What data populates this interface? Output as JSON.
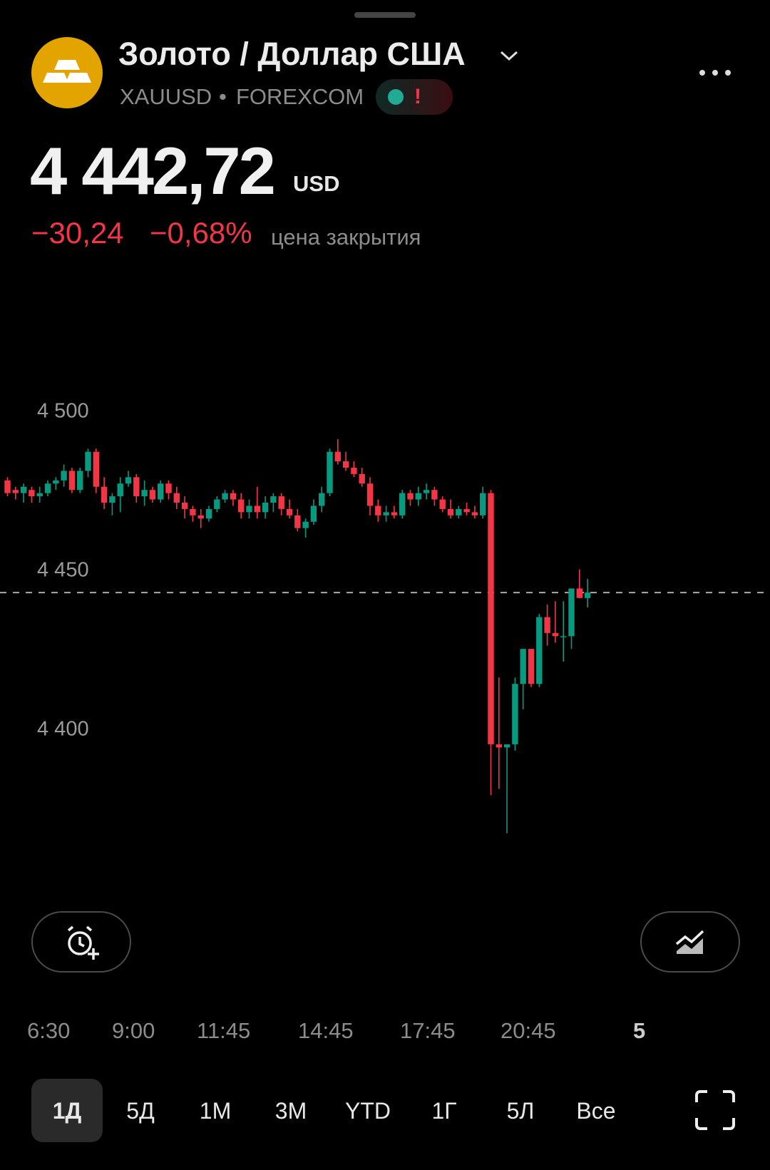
{
  "header": {
    "title": "Золото / Доллар США",
    "symbol": "XAUUSD",
    "exchange": "FOREXCOM",
    "price": "4 442,72",
    "currency": "USD",
    "change": "−30,24",
    "change_percent": "−0,68%",
    "status": "цена закрытия"
  },
  "ranges": [
    "1Д",
    "5Д",
    "1М",
    "3М",
    "YTD",
    "1Г",
    "5Л",
    "Все"
  ],
  "chart_data": {
    "type": "candlestick",
    "up_color": "#089981",
    "down_color": "#f23645",
    "ylim": [
      4360,
      4508
    ],
    "yticks": [
      {
        "value": 4400,
        "label": "4 400"
      },
      {
        "value": 4450,
        "label": "4 450"
      },
      {
        "value": 4500,
        "label": "4 500"
      }
    ],
    "x_labels": [
      "6:30",
      "9:00",
      "11:45",
      "14:45",
      "17:45",
      "20:45",
      "5"
    ],
    "open": [
      4478,
      4475,
      4474,
      4475,
      4473,
      4474,
      4477,
      4478,
      4481,
      4475,
      4481,
      4487,
      4476,
      4471,
      4473,
      4477,
      4479,
      4473,
      4475,
      4472,
      4477,
      4474,
      4471,
      4469,
      4467,
      4466,
      4469,
      4472,
      4474,
      4472,
      4468,
      4470,
      4468,
      4471,
      4473,
      4469,
      4467,
      4463,
      4465,
      4470,
      4474,
      4487,
      4484,
      4482,
      4480,
      4477,
      4470,
      4467,
      4468,
      4467,
      4474,
      4472,
      4474,
      4475,
      4472,
      4469,
      4467,
      4469,
      4468,
      4467,
      4474,
      4395,
      4394,
      4395,
      4414,
      4425,
      4414,
      4435,
      4430,
      4429,
      4429,
      4444,
      4441
    ],
    "high": [
      4479,
      4476,
      4477,
      4476,
      4476,
      4478,
      4479,
      4483,
      4482,
      4482,
      4488,
      4488,
      4479,
      4474,
      4479,
      4481,
      4480,
      4478,
      4476,
      4478,
      4478,
      4476,
      4473,
      4470,
      4469,
      4470,
      4473,
      4475,
      4475,
      4474,
      4472,
      4476,
      4473,
      4474,
      4474,
      4472,
      4469,
      4466,
      4472,
      4476,
      4488,
      4491,
      4487,
      4484,
      4482,
      4479,
      4472,
      4470,
      4470,
      4475,
      4475,
      4476,
      4477,
      4476,
      4473,
      4472,
      4470,
      4471,
      4470,
      4476,
      4475,
      4416,
      4395,
      4416,
      4425,
      4425,
      4436,
      4439,
      4440,
      4440,
      4444,
      4450,
      4447
    ],
    "low": [
      4473,
      4472,
      4471,
      4471,
      4471,
      4473,
      4475,
      4476,
      4474,
      4474,
      4479,
      4474,
      4469,
      4467,
      4468,
      4476,
      4471,
      4470,
      4471,
      4471,
      4472,
      4469,
      4466,
      4465,
      4463,
      4465,
      4468,
      4471,
      4470,
      4466,
      4466,
      4466,
      4466,
      4468,
      4467,
      4466,
      4462,
      4460,
      4464,
      4468,
      4473,
      4483,
      4481,
      4479,
      4476,
      4467,
      4465,
      4465,
      4466,
      4466,
      4470,
      4470,
      4472,
      4470,
      4468,
      4466,
      4466,
      4467,
      4466,
      4466,
      4379,
      4381,
      4367,
      4393,
      4406,
      4413,
      4413,
      4426,
      4427,
      4421,
      4425,
      4441,
      4438
    ],
    "close": [
      4474,
      4474,
      4476,
      4473,
      4474,
      4477,
      4478,
      4481,
      4475,
      4481,
      4487,
      4476,
      4471,
      4473,
      4477,
      4479,
      4473,
      4475,
      4472,
      4477,
      4474,
      4471,
      4469,
      4467,
      4466,
      4469,
      4472,
      4474,
      4472,
      4468,
      4470,
      4468,
      4471,
      4473,
      4469,
      4467,
      4463,
      4465,
      4470,
      4474,
      4487,
      4484,
      4482,
      4480,
      4477,
      4470,
      4467,
      4468,
      4467,
      4474,
      4472,
      4474,
      4475,
      4472,
      4469,
      4467,
      4469,
      4468,
      4467,
      4474,
      4395,
      4394,
      4395,
      4414,
      4425,
      4414,
      4435,
      4430,
      4429,
      4429,
      4444,
      4441,
      4442.72
    ]
  }
}
